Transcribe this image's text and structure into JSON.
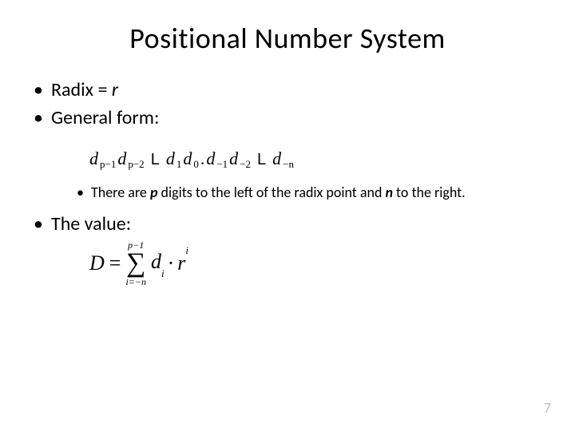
{
  "title": "Positional Number System",
  "bullets": {
    "radix_prefix": "Radix = ",
    "radix_var": "r",
    "general_form": "General form:",
    "value_label": "The value:"
  },
  "digit_sequence": {
    "d": "d",
    "sub_pm1": "p−1",
    "sub_pm2": "p−2",
    "ellipsis": "L",
    "sub_1": "1",
    "sub_0": "0",
    "point": ".",
    "sub_m1": "−1",
    "sub_m2": "−2",
    "sub_mn": "−n"
  },
  "sub_note": {
    "prefix": "There are ",
    "p": "p",
    "mid": " digits to the left of the radix point and ",
    "n": "n",
    "suffix": " to the right."
  },
  "sum": {
    "D": "D",
    "eq": "=",
    "upper": "p−1",
    "sigma": "∑",
    "lower": "i=−n",
    "d": "d",
    "sub_i": "i",
    "dot": "·",
    "r": "r",
    "sup_i": "i"
  },
  "page_number": "7",
  "colors": {
    "text": "#000000",
    "page_num": "#bfbfbf",
    "background": "#ffffff"
  }
}
